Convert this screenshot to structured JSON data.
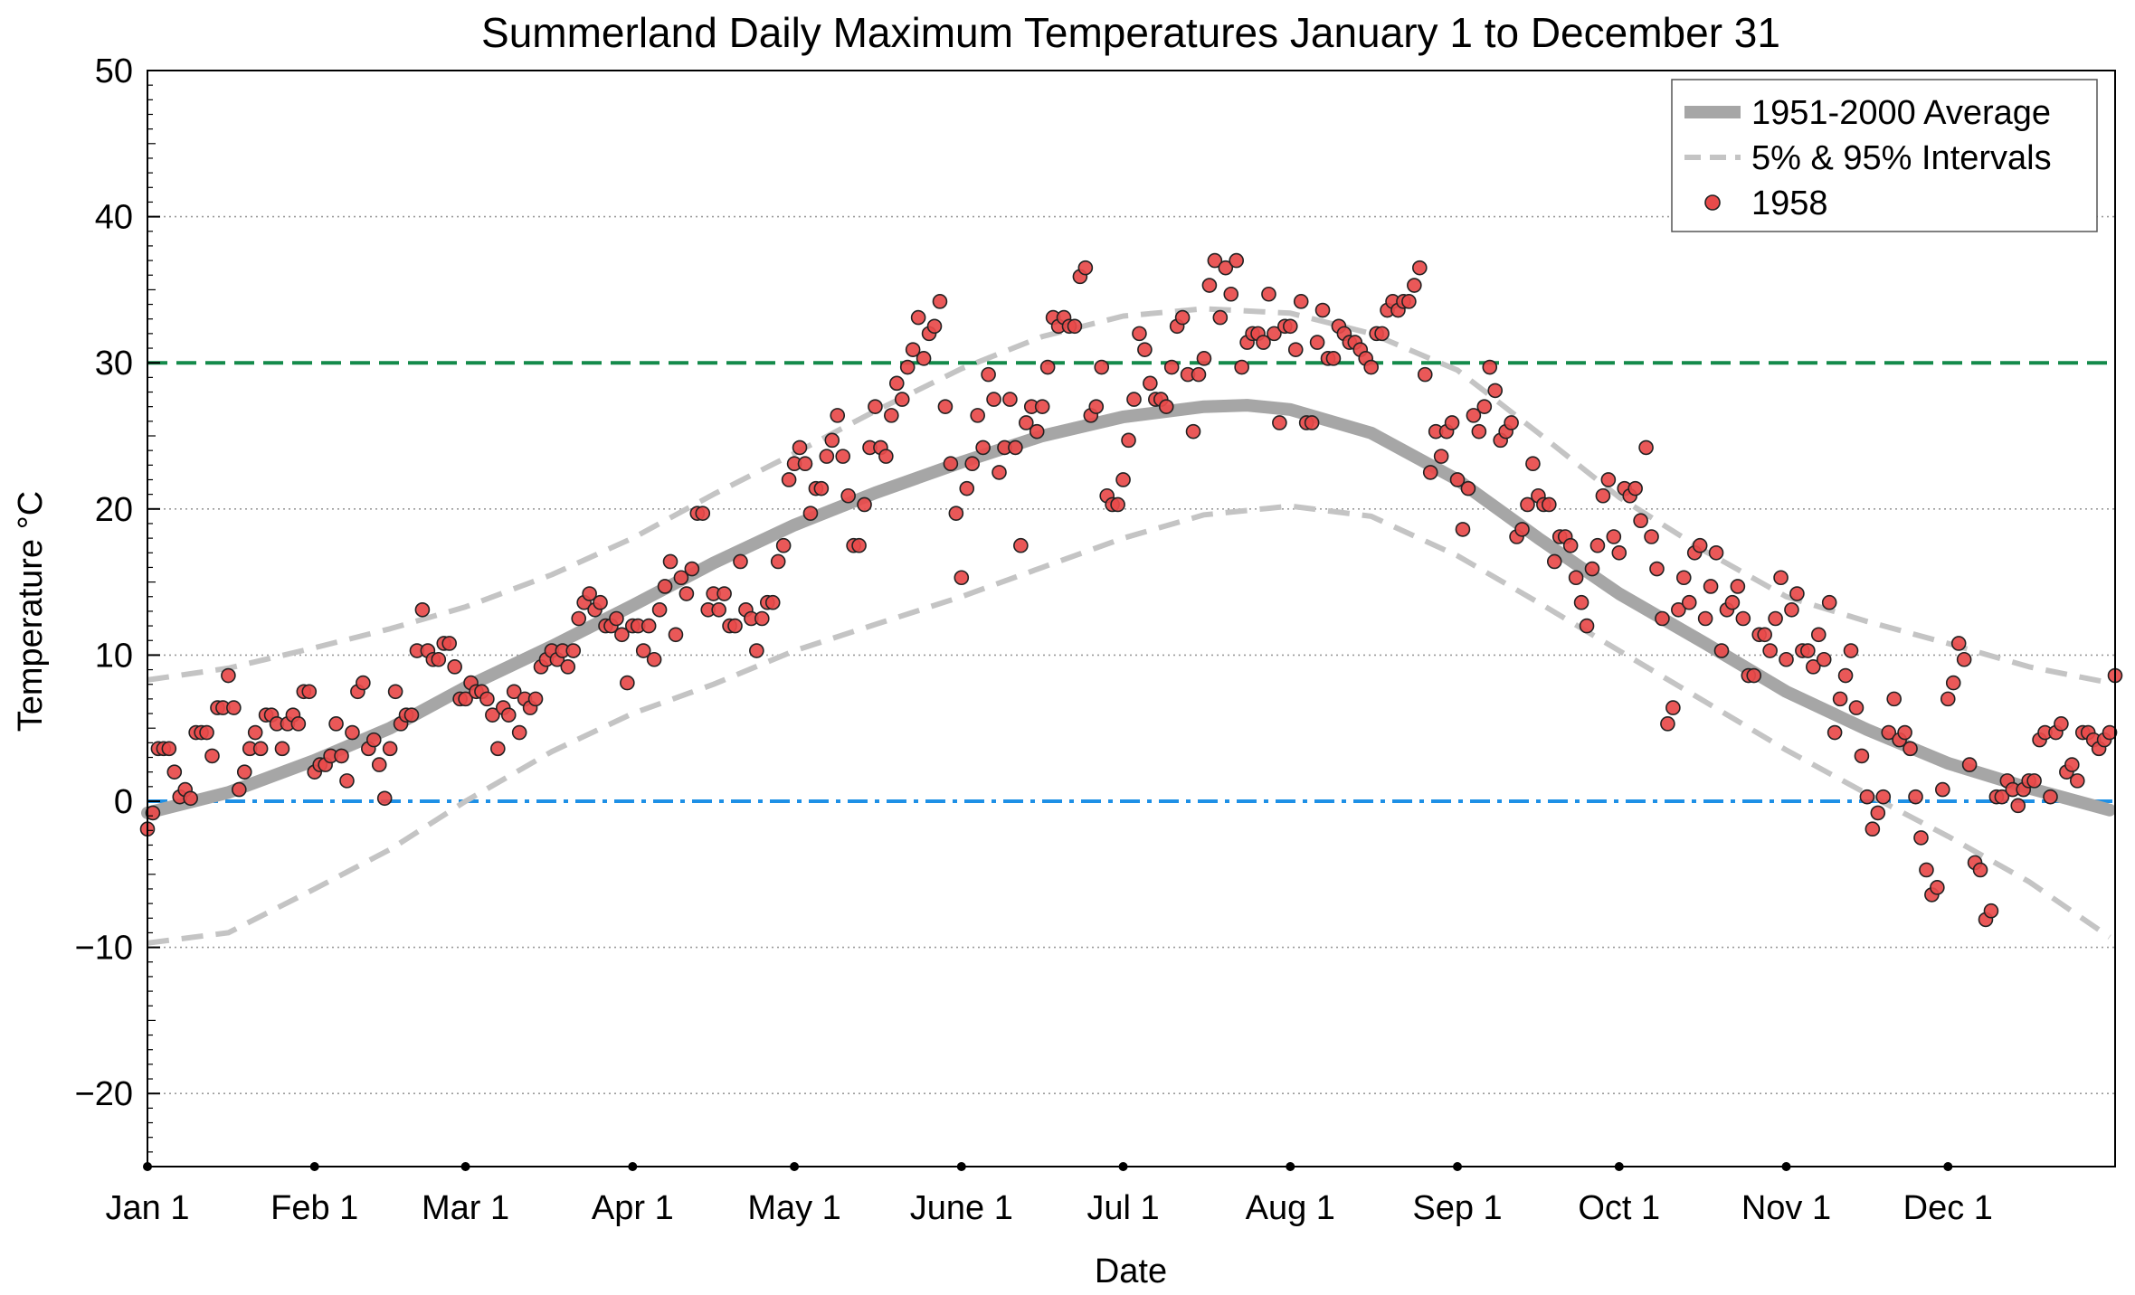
{
  "chart_data": {
    "type": "scatter",
    "title": "Summerland Daily Maximum Temperatures January 1 to December 31",
    "xlabel": "Date",
    "ylabel": "Temperature °C",
    "ylim": [
      -25,
      50
    ],
    "xlim": [
      0,
      365
    ],
    "grid": "horizontal dotted at major y ticks",
    "legend_position": "top-right",
    "x_ticks": [
      {
        "label": "Jan 1",
        "day": 0
      },
      {
        "label": "Feb 1",
        "day": 31
      },
      {
        "label": "Mar 1",
        "day": 59
      },
      {
        "label": "Apr 1",
        "day": 90
      },
      {
        "label": "May 1",
        "day": 120
      },
      {
        "label": "June 1",
        "day": 151
      },
      {
        "label": "Jul 1",
        "day": 181
      },
      {
        "label": "Aug 1",
        "day": 212
      },
      {
        "label": "Sep 1",
        "day": 243
      },
      {
        "label": "Oct 1",
        "day": 273
      },
      {
        "label": "Nov 1",
        "day": 304
      },
      {
        "label": "Dec 1",
        "day": 334
      }
    ],
    "y_ticks": [
      -20,
      -10,
      0,
      10,
      20,
      30,
      40,
      50
    ],
    "reference_lines": [
      {
        "y": 30,
        "color": "#138a4a",
        "style": "dash"
      },
      {
        "y": 0,
        "color": "#1e90e6",
        "style": "dashdot"
      }
    ],
    "series": [
      {
        "name": "1951-2000 Average",
        "kind": "line",
        "style": "solid",
        "color": "#a6a6a6",
        "x": [
          0,
          15,
          31,
          45,
          59,
          75,
          90,
          105,
          120,
          135,
          151,
          166,
          181,
          196,
          204,
          212,
          227,
          243,
          258,
          273,
          289,
          304,
          319,
          334,
          349,
          364
        ],
        "y": [
          -0.8,
          0.6,
          2.8,
          5.0,
          7.8,
          10.6,
          13.4,
          16.3,
          18.9,
          21.1,
          23.2,
          25.0,
          26.3,
          27.0,
          27.1,
          26.8,
          25.2,
          22.0,
          18.0,
          14.2,
          10.8,
          7.5,
          4.9,
          2.6,
          0.9,
          -0.6
        ]
      },
      {
        "name": "5% & 95% Intervals",
        "kind": "line",
        "style": "dash",
        "color": "#c4c4c4",
        "x": [
          0,
          15,
          31,
          45,
          59,
          75,
          90,
          105,
          120,
          135,
          151,
          166,
          181,
          196,
          212,
          227,
          243,
          258,
          273,
          289,
          304,
          319,
          334,
          349,
          364
        ],
        "y": [
          8.3,
          9.1,
          10.5,
          11.8,
          13.3,
          15.5,
          18.0,
          21.0,
          23.8,
          26.7,
          29.6,
          31.8,
          33.2,
          33.7,
          33.4,
          32.0,
          29.5,
          25.2,
          20.8,
          17.1,
          14.0,
          12.3,
          10.8,
          9.2,
          8.1
        ]
      },
      {
        "name": "",
        "kind": "line",
        "style": "dash",
        "color": "#c4c4c4",
        "x": [
          0,
          15,
          31,
          45,
          59,
          75,
          90,
          105,
          120,
          135,
          151,
          166,
          181,
          196,
          212,
          227,
          243,
          258,
          273,
          289,
          304,
          319,
          334,
          349,
          364
        ],
        "y": [
          -9.7,
          -9.0,
          -6.0,
          -3.3,
          0.0,
          3.4,
          6.0,
          8.0,
          10.3,
          12.1,
          14.0,
          16.0,
          18.0,
          19.6,
          20.2,
          19.5,
          16.8,
          13.6,
          10.3,
          6.8,
          3.5,
          0.5,
          -2.4,
          -5.5,
          -9.3
        ]
      },
      {
        "name": "1958",
        "kind": "scatter",
        "color": "#e84a4a",
        "edge_color": "#222222",
        "values": [
          -1.9,
          -0.8,
          3.6,
          3.6,
          3.6,
          2.0,
          0.3,
          0.8,
          0.2,
          4.7,
          4.7,
          4.7,
          3.1,
          6.4,
          6.4,
          8.6,
          6.4,
          0.8,
          2.0,
          3.6,
          4.7,
          3.6,
          5.9,
          5.9,
          5.3,
          3.6,
          5.3,
          5.9,
          5.3,
          7.5,
          7.5,
          2.0,
          2.5,
          2.5,
          3.1,
          5.3,
          3.1,
          1.4,
          4.7,
          7.5,
          8.1,
          3.6,
          4.2,
          2.5,
          0.2,
          3.6,
          7.5,
          5.3,
          5.9,
          5.9,
          10.3,
          13.1,
          10.3,
          9.7,
          9.7,
          10.8,
          10.8,
          9.2,
          7.0,
          7.0,
          8.1,
          7.5,
          7.5,
          7.0,
          5.9,
          3.6,
          6.4,
          5.9,
          7.5,
          4.7,
          7.0,
          6.4,
          7.0,
          9.2,
          9.7,
          10.3,
          9.7,
          10.3,
          9.2,
          10.3,
          12.5,
          13.6,
          14.2,
          13.1,
          13.6,
          12.0,
          12.0,
          12.5,
          11.4,
          8.1,
          12.0,
          12.0,
          10.3,
          12.0,
          9.7,
          13.1,
          14.7,
          16.4,
          11.4,
          15.3,
          14.2,
          15.9,
          19.7,
          19.7,
          13.1,
          14.2,
          13.1,
          14.2,
          12.0,
          12.0,
          16.4,
          13.1,
          12.5,
          10.3,
          12.5,
          13.6,
          13.6,
          16.4,
          17.5,
          22.0,
          23.1,
          24.2,
          23.1,
          19.7,
          21.4,
          21.4,
          23.6,
          24.7,
          26.4,
          23.6,
          20.9,
          17.5,
          17.5,
          20.3,
          24.2,
          27.0,
          24.2,
          23.6,
          26.4,
          28.6,
          27.5,
          29.7,
          30.9,
          33.1,
          30.3,
          32.0,
          32.5,
          34.2,
          27.0,
          23.1,
          19.7,
          15.3,
          21.4,
          23.1,
          26.4,
          24.2,
          29.2,
          27.5,
          22.5,
          24.2,
          27.5,
          24.2,
          17.5,
          25.9,
          27.0,
          25.3,
          27.0,
          29.7,
          33.1,
          32.5,
          33.1,
          32.5,
          32.5,
          35.9,
          36.5,
          26.4,
          27.0,
          29.7,
          20.9,
          20.3,
          20.3,
          22.0,
          24.7,
          27.5,
          32.0,
          30.9,
          28.6,
          27.5,
          27.5,
          27.0,
          29.7,
          32.5,
          33.1,
          29.2,
          25.3,
          29.2,
          30.3,
          35.3,
          37.0,
          33.1,
          36.5,
          34.7,
          37.0,
          29.7,
          31.4,
          32.0,
          32.0,
          31.4,
          34.7,
          32.0,
          25.9,
          32.5,
          32.5,
          30.9,
          34.2,
          25.9,
          25.9,
          31.4,
          33.6,
          30.3,
          30.3,
          32.5,
          32.0,
          31.4,
          31.4,
          30.9,
          30.3,
          29.7,
          32.0,
          32.0,
          33.6,
          34.2,
          33.6,
          34.2,
          34.2,
          35.3,
          36.5,
          29.2,
          22.5,
          25.3,
          23.6,
          25.3,
          25.9,
          22.0,
          18.6,
          21.4,
          26.4,
          25.3,
          27.0,
          29.7,
          28.1,
          24.7,
          25.3,
          25.9,
          18.1,
          18.6,
          20.3,
          23.1,
          20.9,
          20.3,
          20.3,
          16.4,
          18.1,
          18.1,
          17.5,
          15.3,
          13.6,
          12.0,
          15.9,
          17.5,
          20.9,
          22.0,
          18.1,
          17.0,
          21.4,
          20.9,
          21.4,
          19.2,
          24.2,
          18.1,
          15.9,
          12.5,
          5.3,
          6.4,
          13.1,
          15.3,
          13.6,
          17.0,
          17.5,
          12.5,
          14.7,
          17.0,
          10.3,
          13.1,
          13.6,
          14.7,
          12.5,
          8.6,
          8.6,
          11.4,
          11.4,
          10.3,
          12.5,
          15.3,
          9.7,
          13.1,
          14.2,
          10.3,
          10.3,
          9.2,
          11.4,
          9.7,
          13.6,
          4.7,
          7.0,
          8.6,
          10.3,
          6.4,
          3.1,
          0.3,
          -1.9,
          -0.8,
          0.3,
          4.7,
          7.0,
          4.2,
          4.7,
          3.6,
          0.3,
          -2.5,
          -4.7,
          -6.4,
          -5.9,
          0.8,
          7.0,
          8.1,
          10.8,
          9.7,
          2.5,
          -4.2,
          -4.7,
          -8.1,
          -7.5,
          0.3,
          0.3,
          1.4,
          0.8,
          -0.3,
          0.8,
          1.4,
          1.4,
          4.2,
          4.7,
          0.3,
          4.7,
          5.3,
          2.0,
          2.5,
          1.4,
          4.7,
          4.7,
          4.2,
          3.6,
          4.2,
          4.7,
          8.6
        ]
      }
    ]
  }
}
